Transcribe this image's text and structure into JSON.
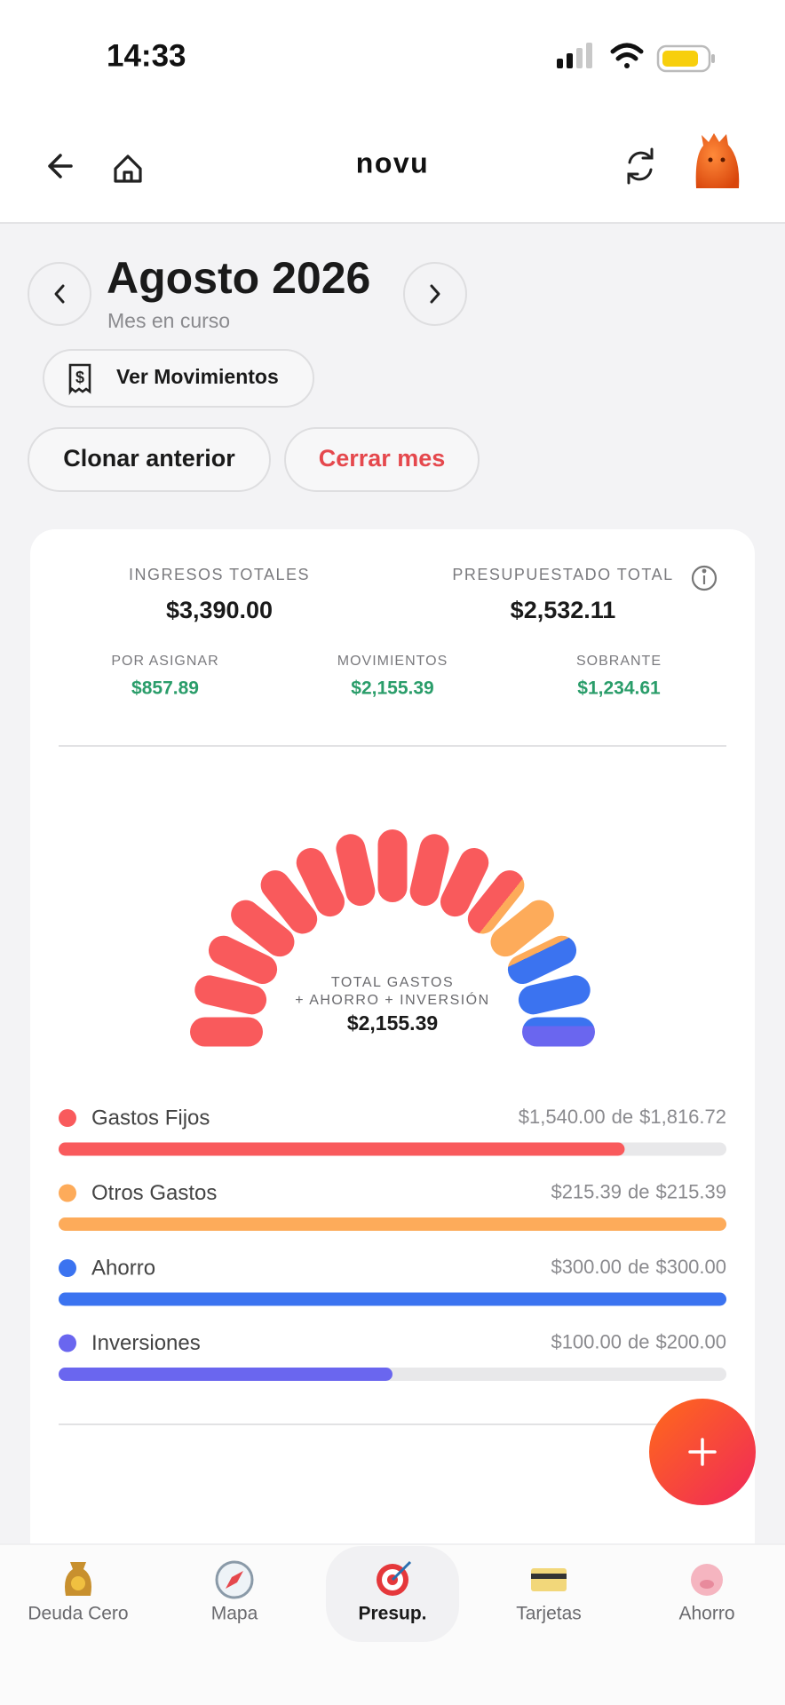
{
  "status_bar": {
    "time": "14:33"
  },
  "header": {
    "brand": "novu"
  },
  "month": {
    "title": "Agosto 2026",
    "subtitle": "Mes en curso"
  },
  "actions": {
    "movements": "Ver Movimientos",
    "clone": "Clonar anterior",
    "close": "Cerrar mes"
  },
  "summary": {
    "top": [
      {
        "label": "INGRESOS TOTALES",
        "value": "$3,390.00"
      },
      {
        "label": "PRESUPUESTADO TOTAL",
        "value": "$2,532.11"
      }
    ],
    "bottom": [
      {
        "label": "POR ASIGNAR",
        "value": "$857.89"
      },
      {
        "label": "MOVIMIENTOS",
        "value": "$2,155.39"
      },
      {
        "label": "SOBRANTE",
        "value": "$1,234.61"
      }
    ]
  },
  "gauge": {
    "label_lines": [
      "TOTAL GASTOS",
      "+ AHORRO + INVERSIÓN"
    ],
    "total": "$2,155.39"
  },
  "categories": {
    "connector": "de",
    "items": [
      {
        "name": "Gastos Fijos",
        "color": "#f95a5c",
        "spent": 1540,
        "spent_label": "$1,540.00",
        "budget": 1816.72,
        "budget_label": "$1,816.72"
      },
      {
        "name": "Otros Gastos",
        "color": "#fdab5a",
        "spent": 215.39,
        "spent_label": "$215.39",
        "budget": 215.39,
        "budget_label": "$215.39"
      },
      {
        "name": "Ahorro",
        "color": "#3b73f0",
        "spent": 300,
        "spent_label": "$300.00",
        "budget": 300,
        "budget_label": "$300.00"
      },
      {
        "name": "Inversiones",
        "color": "#6a66ef",
        "spent": 100,
        "spent_label": "$100.00",
        "budget": 200,
        "budget_label": "$200.00"
      }
    ]
  },
  "nav": {
    "active": 2,
    "items": [
      {
        "label": "Deuda Cero"
      },
      {
        "label": "Mapa"
      },
      {
        "label": "Presup."
      },
      {
        "label": "Tarjetas"
      },
      {
        "label": "Ahorro"
      }
    ]
  }
}
